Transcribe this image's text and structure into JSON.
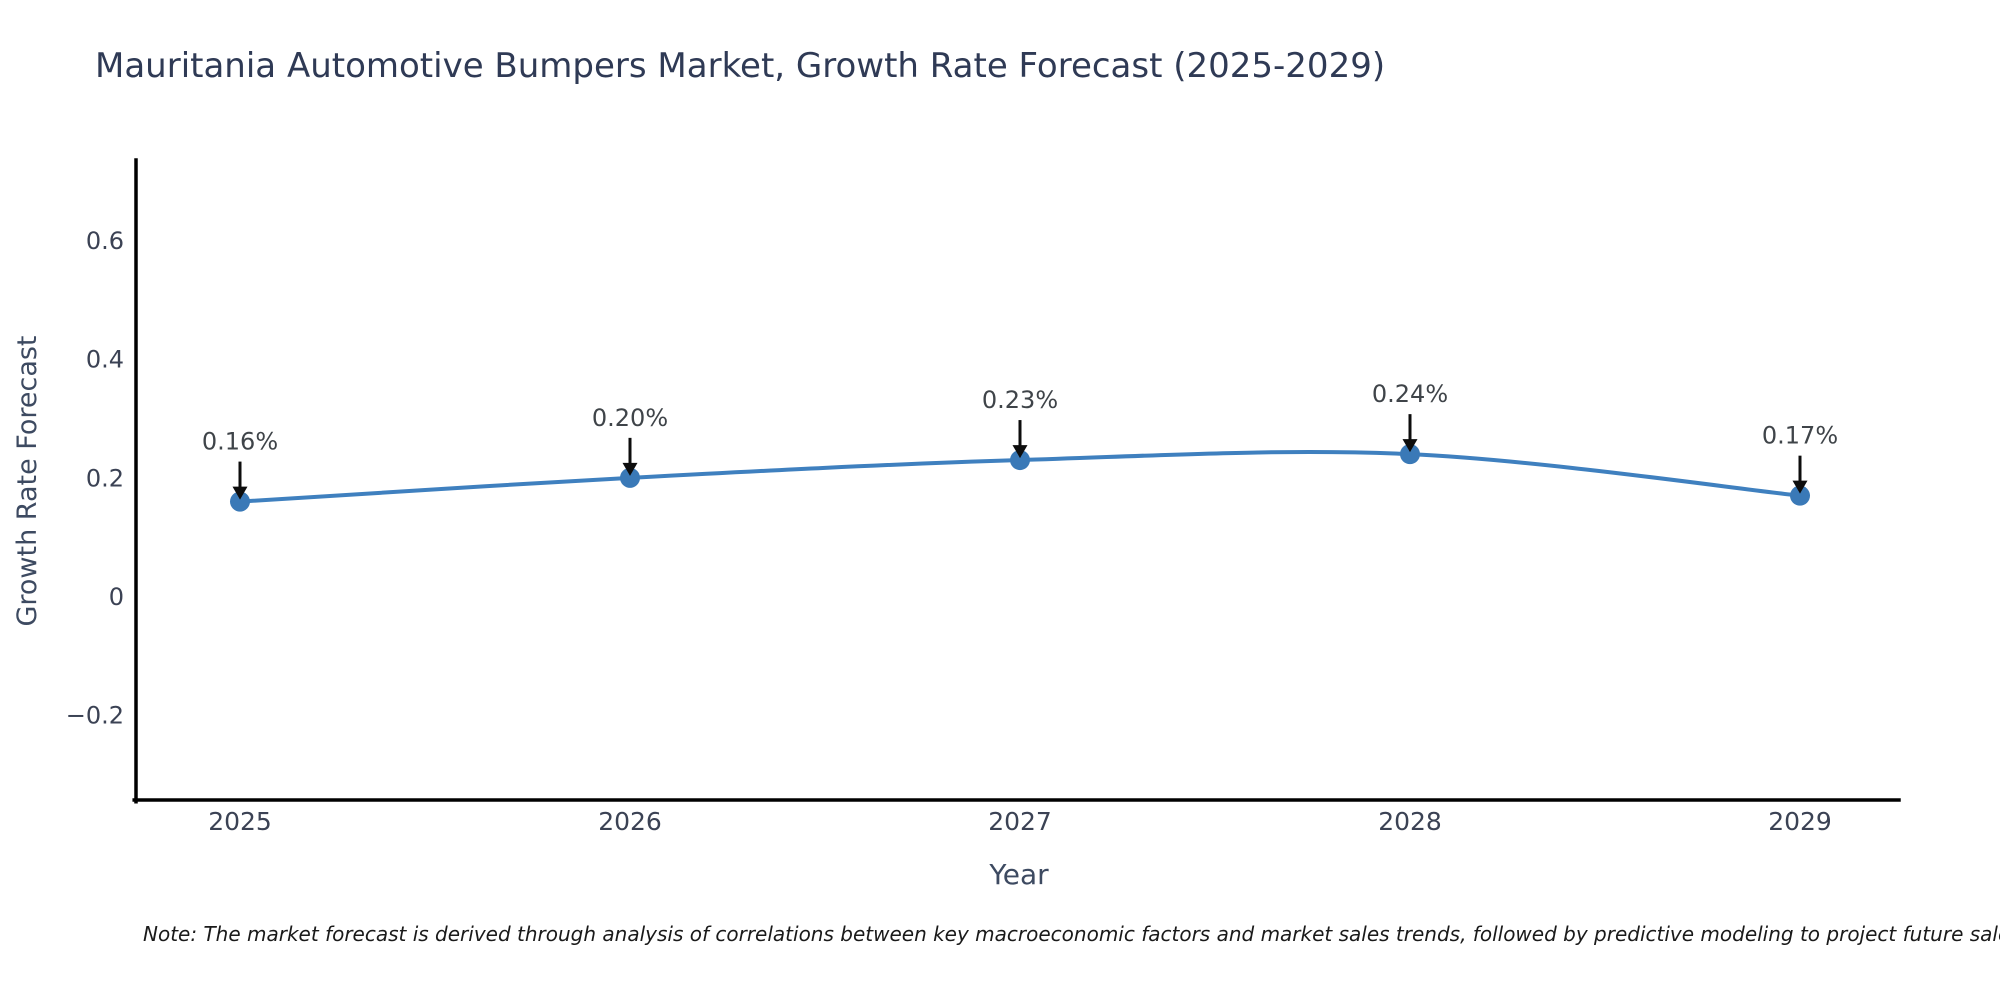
{
  "title": "Mauritania Automotive Bumpers Market, Growth Rate Forecast (2025-2029)",
  "note": "Note: The market forecast is derived through analysis of correlations between key macroeconomic factors and market sales trends, followed by predictive modeling to project future sales",
  "chart_data": {
    "type": "line",
    "title": "Mauritania Automotive Bumpers Market, Growth Rate Forecast (2025-2029)",
    "xlabel": "Year",
    "ylabel": "Growth Rate Forecast",
    "x": [
      2025,
      2026,
      2027,
      2028,
      2029
    ],
    "categories": [
      "2025",
      "2026",
      "2027",
      "2028",
      "2029"
    ],
    "series": [
      {
        "name": "Growth Rate Forecast",
        "values": [
          0.16,
          0.2,
          0.23,
          0.24,
          0.17
        ]
      }
    ],
    "point_labels": [
      "0.16%",
      "0.20%",
      "0.23%",
      "0.24%",
      "0.17%"
    ],
    "y_ticks": [
      0.6,
      0.4,
      0.2,
      0,
      -0.2
    ],
    "y_tick_labels": [
      "0.6",
      "0.4",
      "0.2",
      "0",
      "−0.2"
    ],
    "ylim": [
      -0.34,
      0.74
    ],
    "xlim": [
      2024.74,
      2029.25
    ],
    "grid": false,
    "legend": "none",
    "colors": {
      "line": "#3f80bf",
      "marker": "#3a79b7",
      "arrow": "#0d0d0d",
      "title_text": "#2f3a55",
      "tick_text": "#3b4254",
      "axis_label_text": "#3d4a61",
      "annotation_text": "#3f4449",
      "spine": "#000000",
      "note_text": "#1a1a1a",
      "background": "#ffffff"
    }
  }
}
